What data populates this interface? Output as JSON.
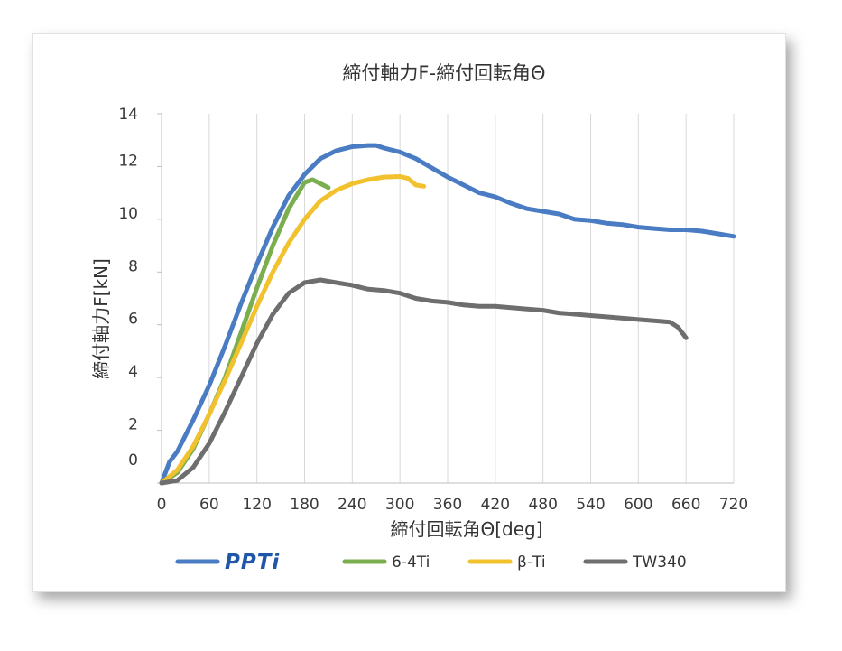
{
  "chart_data": {
    "type": "line",
    "title": "締付軸力F-締付回転角Θ",
    "xlabel": "締付回転角Θ[deg]",
    "ylabel": "締付軸力F[kN]",
    "xlim": [
      0,
      720
    ],
    "ylim": [
      0,
      14
    ],
    "x_ticks": [
      "0",
      "60",
      "120",
      "180",
      "240",
      "300",
      "360",
      "420",
      "480",
      "540",
      "600",
      "660",
      "720"
    ],
    "y_ticks": [
      "0",
      "2",
      "4",
      "6",
      "8",
      "10",
      "12",
      "14"
    ],
    "grid": "vertical",
    "legend_position": "bottom",
    "series": [
      {
        "name": "PPTi",
        "color": "#4a7cc4",
        "legend_color": "#1e56a8",
        "x": [
          0,
          10,
          20,
          40,
          60,
          80,
          100,
          120,
          140,
          160,
          180,
          200,
          220,
          240,
          260,
          270,
          280,
          300,
          320,
          340,
          360,
          380,
          400,
          420,
          440,
          460,
          480,
          500,
          520,
          540,
          560,
          580,
          600,
          620,
          640,
          660,
          680,
          700,
          720
        ],
        "y": [
          0,
          0.8,
          1.2,
          2.4,
          3.7,
          5.2,
          6.8,
          8.3,
          9.7,
          10.9,
          11.7,
          12.3,
          12.6,
          12.75,
          12.8,
          12.8,
          12.7,
          12.55,
          12.3,
          11.95,
          11.6,
          11.3,
          11.0,
          10.85,
          10.6,
          10.4,
          10.3,
          10.2,
          10.0,
          9.95,
          9.85,
          9.8,
          9.7,
          9.65,
          9.6,
          9.6,
          9.55,
          9.45,
          9.35
        ]
      },
      {
        "name": "6-4Ti",
        "color": "#7aae4e",
        "x": [
          0,
          20,
          40,
          60,
          80,
          100,
          120,
          140,
          160,
          180,
          190,
          200,
          210
        ],
        "y": [
          0,
          0.4,
          1.3,
          2.6,
          4.0,
          5.7,
          7.4,
          9.0,
          10.4,
          11.4,
          11.5,
          11.35,
          11.2
        ]
      },
      {
        "name": "β-Ti",
        "color": "#f2c12e",
        "x": [
          0,
          20,
          40,
          60,
          80,
          100,
          120,
          140,
          160,
          180,
          200,
          220,
          240,
          260,
          280,
          300,
          310,
          320,
          330
        ],
        "y": [
          0,
          0.5,
          1.4,
          2.6,
          3.9,
          5.3,
          6.7,
          8.0,
          9.1,
          10.0,
          10.7,
          11.1,
          11.35,
          11.5,
          11.6,
          11.62,
          11.55,
          11.3,
          11.25
        ]
      },
      {
        "name": "TW340",
        "color": "#6e6e6e",
        "x": [
          0,
          20,
          40,
          60,
          80,
          100,
          120,
          140,
          160,
          180,
          200,
          220,
          240,
          260,
          280,
          300,
          320,
          340,
          360,
          380,
          400,
          420,
          440,
          460,
          480,
          500,
          520,
          540,
          560,
          580,
          600,
          620,
          640,
          650,
          660
        ],
        "y": [
          0,
          0.1,
          0.6,
          1.5,
          2.7,
          4.0,
          5.3,
          6.4,
          7.2,
          7.6,
          7.7,
          7.6,
          7.5,
          7.35,
          7.3,
          7.2,
          7.0,
          6.9,
          6.85,
          6.75,
          6.7,
          6.7,
          6.65,
          6.6,
          6.55,
          6.45,
          6.4,
          6.35,
          6.3,
          6.25,
          6.2,
          6.15,
          6.1,
          5.9,
          5.5
        ]
      }
    ]
  }
}
